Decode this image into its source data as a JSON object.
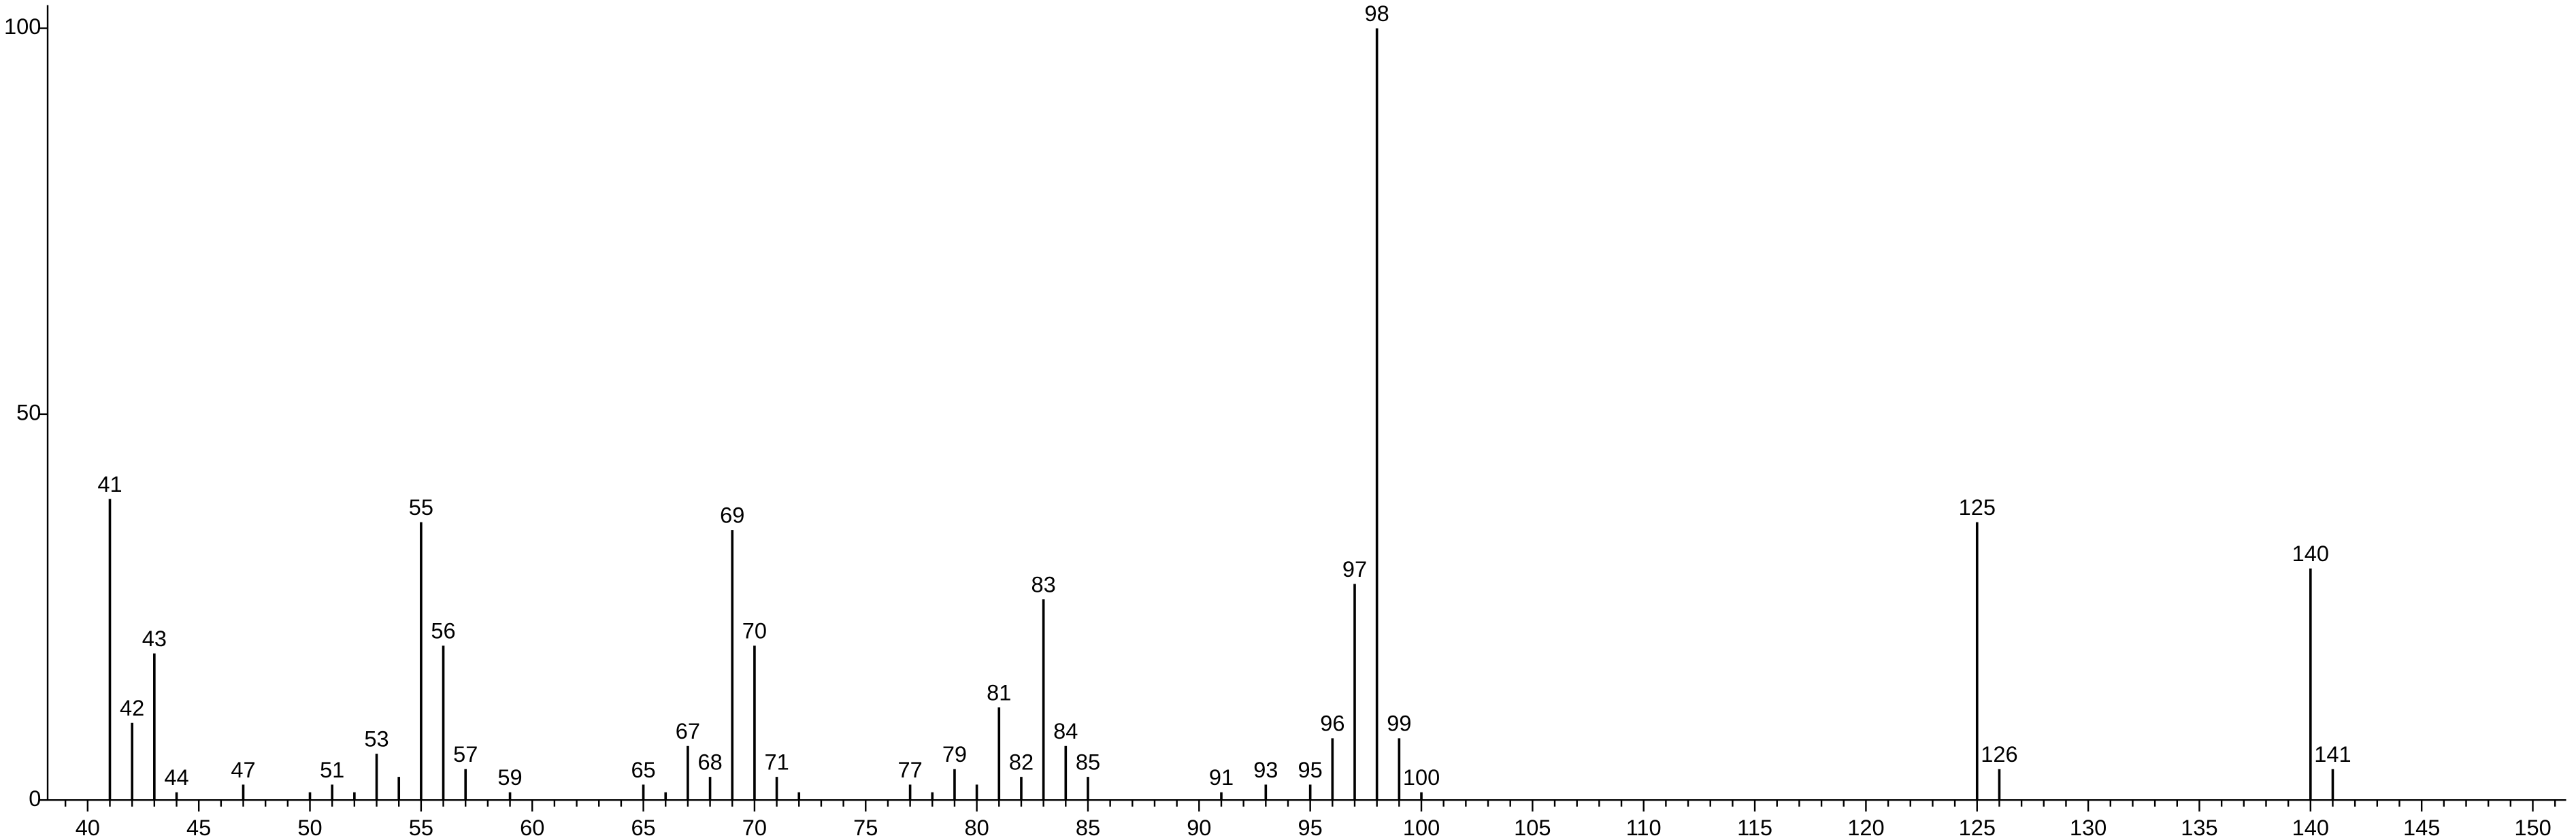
{
  "chart_data": {
    "type": "stem",
    "x": [
      41,
      42,
      43,
      44,
      47,
      50,
      51,
      52,
      53,
      54,
      55,
      56,
      57,
      59,
      65,
      66,
      67,
      68,
      69,
      70,
      71,
      72,
      77,
      78,
      79,
      80,
      81,
      82,
      83,
      84,
      85,
      91,
      93,
      95,
      96,
      97,
      98,
      99,
      100,
      125,
      126,
      140,
      141
    ],
    "values": [
      39,
      10,
      19,
      1,
      2,
      1,
      2,
      1,
      6,
      3,
      36,
      20,
      4,
      1,
      2,
      1,
      7,
      3,
      35,
      20,
      3,
      1,
      2,
      1,
      4,
      2,
      12,
      3,
      26,
      7,
      3,
      1,
      2,
      2,
      8,
      28,
      100,
      8,
      1,
      36,
      4,
      30,
      4
    ],
    "labels": [
      "41",
      "42",
      "43",
      "44",
      "47",
      null,
      "51",
      null,
      "53",
      null,
      "55",
      "56",
      "57",
      "59",
      "65",
      null,
      "67",
      "68",
      "69",
      "70",
      "71",
      null,
      "77",
      null,
      "79",
      null,
      "81",
      "82",
      "83",
      "84",
      "85",
      "91",
      "93",
      "95",
      "96",
      "97",
      "98",
      "99",
      "100",
      "125",
      "126",
      "140",
      "141"
    ],
    "color": "#000000",
    "xlim": [
      38.2,
      151.5
    ],
    "ylim": [
      0,
      103
    ],
    "xticks": [
      40,
      45,
      50,
      55,
      60,
      65,
      70,
      75,
      80,
      85,
      90,
      95,
      100,
      105,
      110,
      115,
      120,
      125,
      130,
      135,
      140,
      145,
      150
    ],
    "xminorticks": [
      39,
      41,
      42,
      43,
      44,
      46,
      47,
      48,
      49,
      51,
      52,
      53,
      54,
      56,
      57,
      58,
      59,
      61,
      62,
      63,
      64,
      66,
      67,
      68,
      69,
      71,
      72,
      73,
      74,
      76,
      77,
      78,
      79,
      81,
      82,
      83,
      84,
      86,
      87,
      88,
      89,
      91,
      92,
      93,
      94,
      96,
      97,
      98,
      99,
      101,
      102,
      103,
      104,
      106,
      107,
      108,
      109,
      111,
      112,
      113,
      114,
      116,
      117,
      118,
      119,
      121,
      122,
      123,
      124,
      126,
      127,
      128,
      129,
      131,
      132,
      133,
      134,
      136,
      137,
      138,
      139,
      141,
      142,
      143,
      144,
      146,
      147,
      148,
      149,
      151
    ],
    "yticks": [
      0,
      50,
      100
    ]
  }
}
